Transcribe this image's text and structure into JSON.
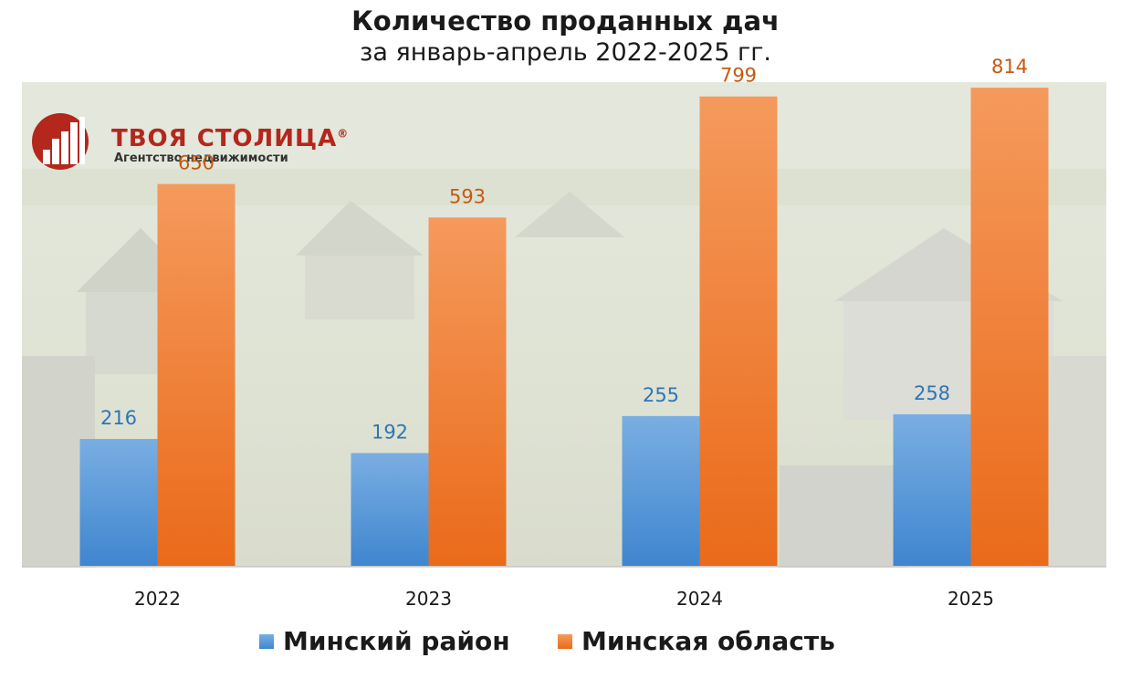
{
  "chart_data": {
    "type": "bar",
    "title": "Количество проданных дач",
    "subtitle": "за январь-апрель 2022-2025 гг.",
    "categories": [
      "2022",
      "2023",
      "2024",
      "2025"
    ],
    "series": [
      {
        "name": "Минский район",
        "values": [
          216,
          192,
          255,
          258
        ],
        "color": "#5b9bd5"
      },
      {
        "name": "Минская область",
        "values": [
          650,
          593,
          799,
          814
        ],
        "color": "#f07a2c"
      }
    ],
    "ylim": [
      0,
      870
    ],
    "grid": false,
    "legend": "bottom"
  },
  "logo": {
    "name": "ТВОЯ СТОЛИЦА",
    "registered": "®",
    "tagline": "Агентство недвижимости"
  }
}
